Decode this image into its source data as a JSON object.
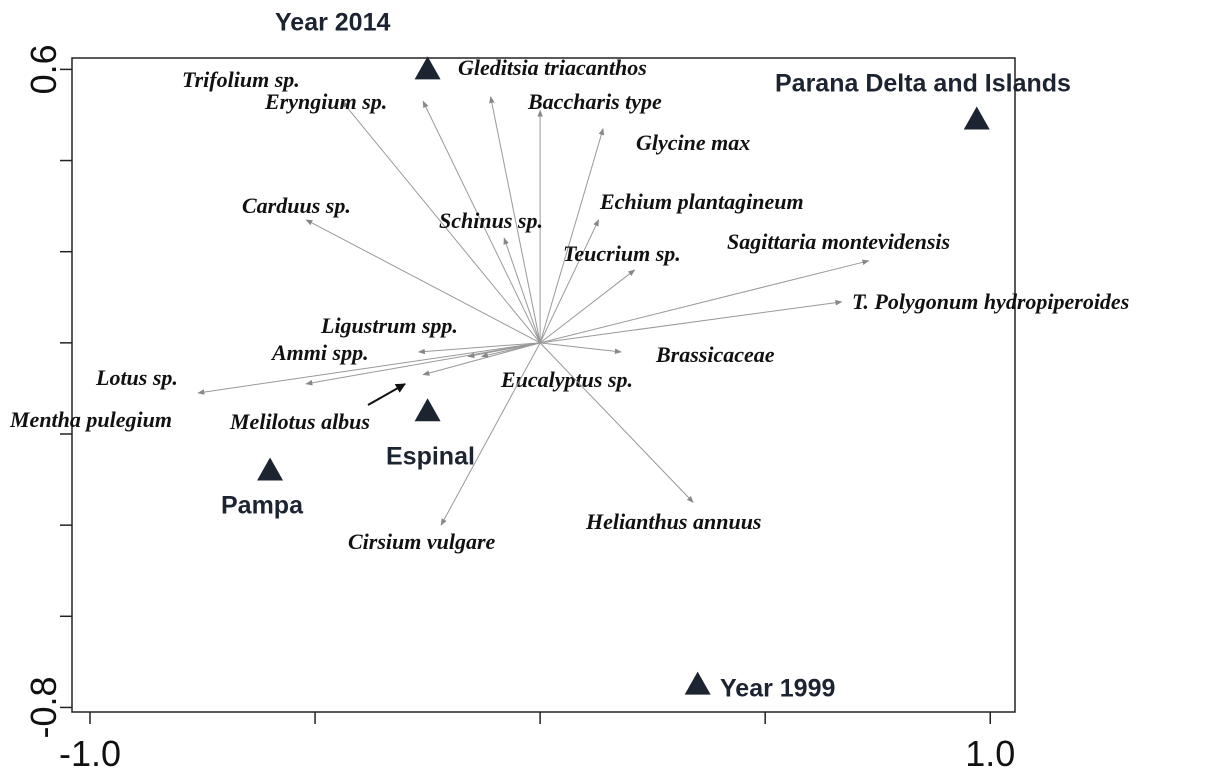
{
  "chart_data": {
    "type": "biplot",
    "xlim": [
      -1.04,
      1.055
    ],
    "ylim": [
      -0.81,
      0.625
    ],
    "xticks": [
      {
        "value": -1,
        "label": "-1.0"
      },
      {
        "value": 1,
        "label": "1.0"
      }
    ],
    "yticks": [
      -0.8,
      0.6
    ],
    "x_minor_ticks": [
      -0.5,
      0,
      0.5
    ],
    "y_minor_ticks": [
      -0.6,
      -0.4,
      -0.2,
      0,
      0.2,
      0.4
    ],
    "arrow_color": "#999999",
    "point_color": "#1c2331",
    "arrows": {
      "labels": [
        "Trifolium sp.",
        "Eryngium sp.",
        "Gleditsia triacanthos",
        "Baccharis type",
        "Glycine max",
        "Carduus sp.",
        "Schinus sp.",
        "Echium plantagineum",
        "Teucrium sp.",
        "Sagittaria montevidensis",
        "T. Polygonum hydropiperoides",
        "Brassicaceae",
        "Ligustrum spp.",
        "Ammi spp.",
        "Lotus sp.",
        "Mentha pulegium",
        "Melilotus albus",
        "Eucalyptus sp.",
        "Cirsium vulgare",
        "Helianthus annuus"
      ],
      "x": [
        -0.44,
        -0.26,
        -0.11,
        0.0,
        0.14,
        -0.52,
        -0.08,
        0.13,
        0.21,
        0.73,
        0.67,
        0.18,
        -0.27,
        -0.52,
        -0.76,
        -0.26,
        -0.16,
        -0.13,
        -0.22,
        0.34
      ],
      "y": [
        0.53,
        0.53,
        0.54,
        0.51,
        0.47,
        0.27,
        0.23,
        0.27,
        0.16,
        0.18,
        0.09,
        -0.02,
        -0.02,
        -0.09,
        -0.11,
        -0.07,
        -0.03,
        -0.03,
        -0.4,
        -0.35
      ]
    },
    "points": {
      "labels": [
        "Year 2014",
        "Parana Delta and Islands",
        "Espinal",
        "Pampa",
        "Year 1999"
      ],
      "x": [
        -0.25,
        0.97,
        -0.25,
        -0.6,
        0.35
      ],
      "y": [
        0.6,
        0.49,
        -0.15,
        -0.28,
        -0.75
      ]
    }
  }
}
